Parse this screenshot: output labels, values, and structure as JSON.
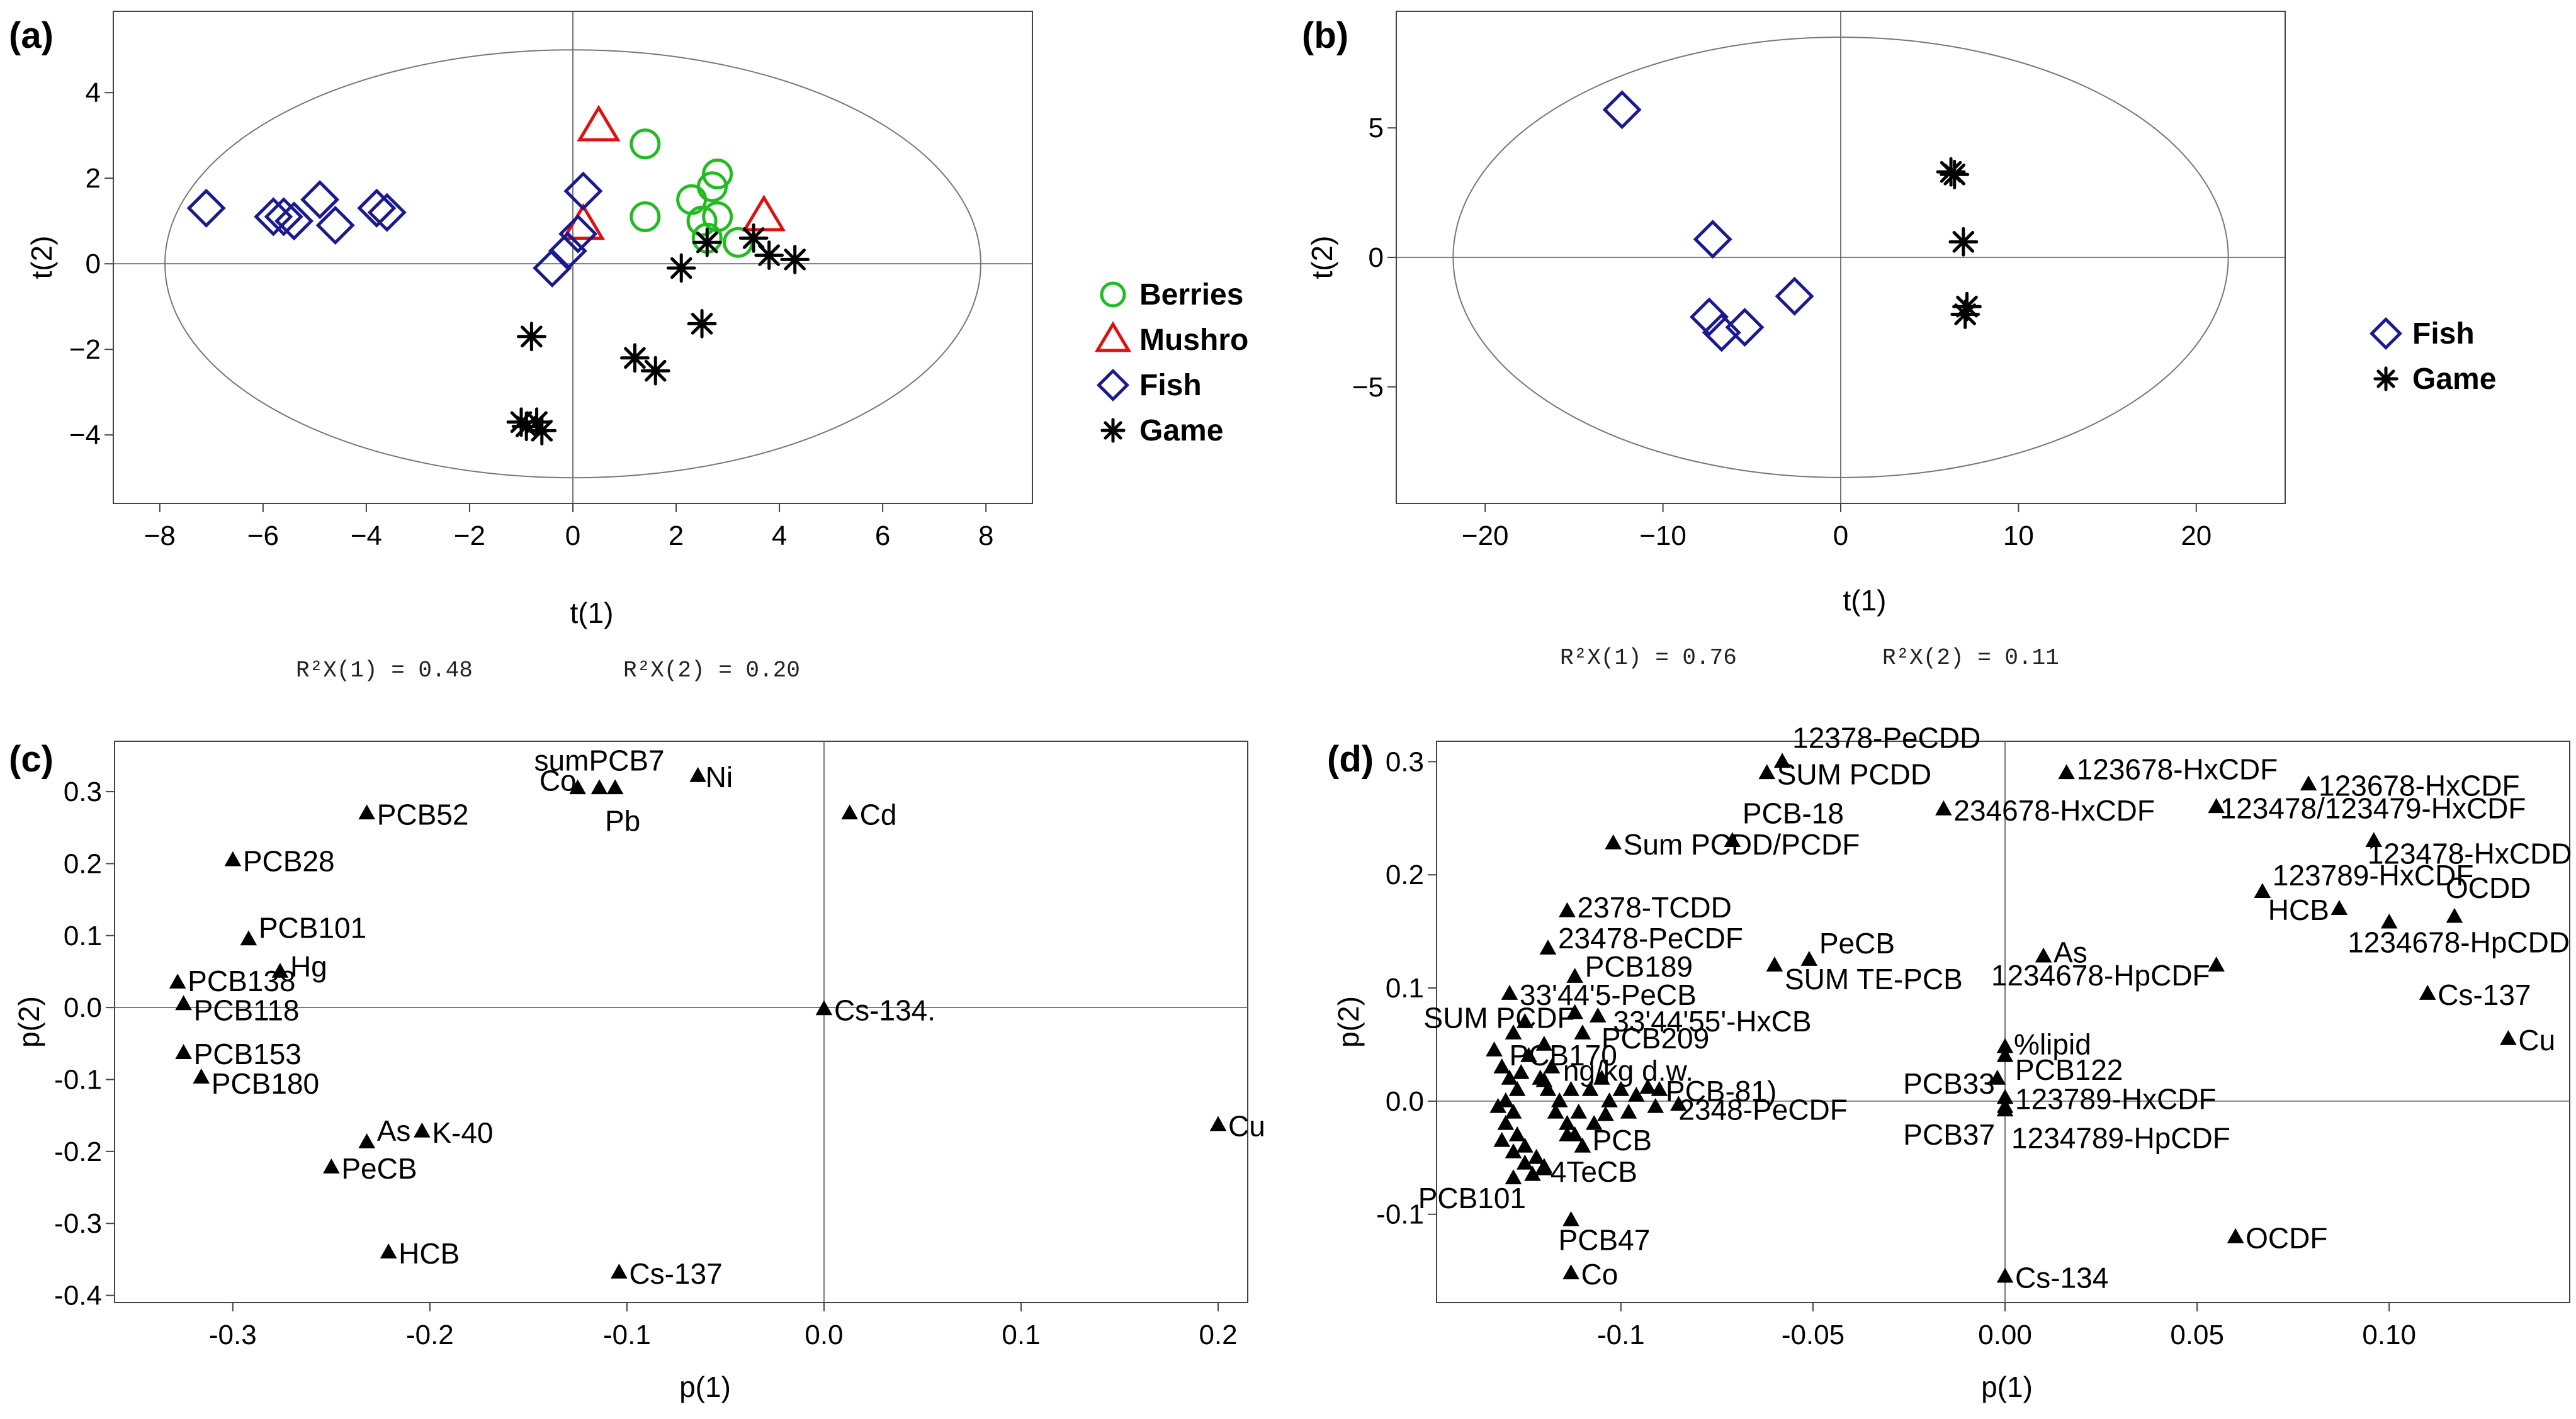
{
  "chart_data": [
    {
      "id": "a",
      "type": "scatter",
      "panel_label": "(a)",
      "xlabel": "t(1)",
      "ylabel": "t(2)",
      "xlim": [
        -8.9,
        8.9
      ],
      "ylim": [
        -5.6,
        5.9
      ],
      "xticks": [
        -8,
        -6,
        -4,
        -2,
        0,
        2,
        4,
        6,
        8
      ],
      "yticks": [
        -4,
        -2,
        0,
        2,
        4
      ],
      "ellipse": {
        "rx": 7.9,
        "ry": 5.0
      },
      "variance_text": [
        "R²X(1) = 0.48",
        "R²X(2) = 0.20"
      ],
      "legend": [
        {
          "name": "Berries",
          "marker": "circle",
          "color": "#22bb22"
        },
        {
          "name": "Mushro",
          "marker": "triangle",
          "color": "#dd1111"
        },
        {
          "name": "Fish",
          "marker": "diamond",
          "color": "#1a1a8c"
        },
        {
          "name": "Game",
          "marker": "star",
          "color": "#000000"
        }
      ],
      "series": [
        {
          "name": "Berries",
          "marker": "circle",
          "color": "#22bb22",
          "points": [
            [
              1.4,
              2.8
            ],
            [
              1.4,
              1.1
            ],
            [
              2.3,
              1.5
            ],
            [
              2.5,
              1.0
            ],
            [
              2.7,
              1.8
            ],
            [
              2.8,
              2.1
            ],
            [
              2.8,
              1.1
            ],
            [
              2.6,
              0.6
            ],
            [
              3.2,
              0.5
            ]
          ]
        },
        {
          "name": "Mushro",
          "marker": "triangle",
          "color": "#dd1111",
          "points": [
            [
              0.5,
              3.2
            ],
            [
              0.2,
              0.9
            ],
            [
              3.7,
              1.1
            ]
          ]
        },
        {
          "name": "Fish",
          "marker": "diamond",
          "color": "#1a1a8c",
          "points": [
            [
              -7.1,
              1.3
            ],
            [
              -5.8,
              1.1
            ],
            [
              -5.6,
              1.1
            ],
            [
              -5.4,
              1.0
            ],
            [
              -4.9,
              1.5
            ],
            [
              -4.6,
              0.9
            ],
            [
              -3.8,
              1.3
            ],
            [
              -3.6,
              1.2
            ],
            [
              0.2,
              1.7
            ],
            [
              0.1,
              0.7
            ],
            [
              -0.1,
              0.3
            ],
            [
              -0.4,
              -0.1
            ]
          ]
        },
        {
          "name": "Game",
          "marker": "star",
          "color": "#000000",
          "points": [
            [
              -0.8,
              -1.7
            ],
            [
              -1.0,
              -3.7
            ],
            [
              -0.9,
              -3.8
            ],
            [
              -0.7,
              -3.7
            ],
            [
              -0.6,
              -3.9
            ],
            [
              1.2,
              -2.2
            ],
            [
              1.6,
              -2.5
            ],
            [
              2.1,
              -0.1
            ],
            [
              2.6,
              0.5
            ],
            [
              2.5,
              -1.4
            ],
            [
              3.5,
              0.6
            ],
            [
              3.8,
              0.2
            ],
            [
              4.3,
              0.1
            ]
          ]
        }
      ]
    },
    {
      "id": "b",
      "type": "scatter",
      "panel_label": "(b)",
      "xlabel": "t(1)",
      "ylabel": "t(2)",
      "xlim": [
        -25,
        25
      ],
      "ylim": [
        -9.5,
        9.5
      ],
      "xticks": [
        -20,
        -10,
        0,
        10,
        20
      ],
      "yticks": [
        -5,
        0,
        5
      ],
      "ellipse": {
        "rx": 21.8,
        "ry": 8.5
      },
      "variance_text": [
        "R²X(1) = 0.76",
        "R²X(2) = 0.11"
      ],
      "legend": [
        {
          "name": "Fish",
          "marker": "diamond",
          "color": "#1a1a8c"
        },
        {
          "name": "Game",
          "marker": "star",
          "color": "#000000"
        }
      ],
      "series": [
        {
          "name": "Fish",
          "marker": "diamond",
          "color": "#1a1a8c",
          "points": [
            [
              -12.3,
              5.7
            ],
            [
              -7.2,
              0.7
            ],
            [
              -7.4,
              -2.3
            ],
            [
              -6.7,
              -2.9
            ],
            [
              -5.4,
              -2.7
            ],
            [
              -2.6,
              -1.5
            ]
          ]
        },
        {
          "name": "Game",
          "marker": "star",
          "color": "#000000",
          "points": [
            [
              6.2,
              3.3
            ],
            [
              6.4,
              3.2
            ],
            [
              6.9,
              0.6
            ],
            [
              7.1,
              -1.9
            ],
            [
              7.0,
              -2.2
            ]
          ]
        }
      ]
    },
    {
      "id": "c",
      "type": "scatter",
      "panel_label": "(c)",
      "xlabel": "p(1)",
      "ylabel": "p(2)",
      "xlim": [
        -0.36,
        0.215
      ],
      "ylim": [
        -0.41,
        0.37
      ],
      "xticks": [
        -0.3,
        -0.2,
        -0.1,
        0.0,
        0.1,
        0.2
      ],
      "ytick_values": [
        -0.4,
        -0.3,
        -0.2,
        -0.1,
        0.0,
        0.1,
        0.2,
        0.3
      ],
      "ytick_labels": [
        "-0.4",
        "-0.3",
        "-0.2",
        "-0.1",
        "0.0",
        "0.1",
        "0.2",
        "0.3"
      ],
      "xtick_labels": [
        "-0.3",
        "-0.2",
        "-0.1",
        "0.0",
        "0.1",
        "0.2"
      ],
      "points": [
        {
          "label": "Co",
          "x": -0.125,
          "y": 0.305,
          "anchor": "end",
          "dx": -2,
          "dy": 4
        },
        {
          "label": "sumPCB7",
          "x": -0.114,
          "y": 0.305,
          "anchor": "middle",
          "dx": 0,
          "dy": -28
        },
        {
          "label": "Pb",
          "x": -0.106,
          "y": 0.305,
          "anchor": "middle",
          "dx": 12,
          "dy": 68
        },
        {
          "label": "Ni",
          "x": -0.064,
          "y": 0.322,
          "anchor": "start",
          "dx": 12,
          "dy": 18
        },
        {
          "label": "Cd",
          "x": 0.013,
          "y": 0.27,
          "anchor": "start",
          "dx": 16,
          "dy": 18
        },
        {
          "label": "PCB52",
          "x": -0.232,
          "y": 0.27,
          "anchor": "start",
          "dx": 16,
          "dy": 18
        },
        {
          "label": "PCB28",
          "x": -0.3,
          "y": 0.205,
          "anchor": "start",
          "dx": 16,
          "dy": 18
        },
        {
          "label": "PCB101",
          "x": -0.292,
          "y": 0.095,
          "anchor": "start",
          "dx": 16,
          "dy": -2
        },
        {
          "label": "Hg",
          "x": -0.276,
          "y": 0.05,
          "anchor": "start",
          "dx": 16,
          "dy": 8
        },
        {
          "label": "PCB138",
          "x": -0.328,
          "y": 0.035,
          "anchor": "start",
          "dx": 16,
          "dy": 14
        },
        {
          "label": "PCB118",
          "x": -0.325,
          "y": 0.005,
          "anchor": "start",
          "dx": 16,
          "dy": 26
        },
        {
          "label": "Cs-134.",
          "x": 0.0,
          "y": -0.002,
          "anchor": "start",
          "dx": 16,
          "dy": 18
        },
        {
          "label": "PCB153",
          "x": -0.325,
          "y": -0.063,
          "anchor": "start",
          "dx": 16,
          "dy": 18
        },
        {
          "label": "PCB180",
          "x": -0.316,
          "y": -0.097,
          "anchor": "start",
          "dx": 16,
          "dy": 26
        },
        {
          "label": "As",
          "x": -0.232,
          "y": -0.187,
          "anchor": "start",
          "dx": 16,
          "dy": -2
        },
        {
          "label": "K-40",
          "x": -0.204,
          "y": -0.172,
          "anchor": "start",
          "dx": 16,
          "dy": 18
        },
        {
          "label": "PeCB",
          "x": -0.25,
          "y": -0.222,
          "anchor": "start",
          "dx": 16,
          "dy": 18
        },
        {
          "label": "Cu",
          "x": 0.2,
          "y": -0.163,
          "anchor": "start",
          "dx": 16,
          "dy": 18
        },
        {
          "label": "HCB",
          "x": -0.221,
          "y": -0.34,
          "anchor": "start",
          "dx": 16,
          "dy": 18
        },
        {
          "label": "Cs-137",
          "x": -0.104,
          "y": -0.368,
          "anchor": "start",
          "dx": 16,
          "dy": 18
        }
      ]
    },
    {
      "id": "d",
      "type": "scatter",
      "panel_label": "(d)",
      "xlabel": "p(1)",
      "ylabel": "p(2)",
      "xlim": [
        -0.148,
        0.147
      ],
      "ylim": [
        -0.178,
        0.318
      ],
      "xticks": [
        -0.1,
        -0.05,
        0.0,
        0.05,
        0.1
      ],
      "xtick_labels": [
        "-0.1",
        "-0.05",
        "0.00",
        "0.05",
        "0.10"
      ],
      "ytick_values": [
        -0.1,
        0.0,
        0.1,
        0.2,
        0.3
      ],
      "ytick_labels": [
        "-0.1",
        "0.0",
        "0.1",
        "0.2",
        "0.3"
      ],
      "points": [
        {
          "label": "12378-PeCDD",
          "x": -0.058,
          "y": 0.3,
          "anchor": "start",
          "dx": 16,
          "dy": -22
        },
        {
          "label": "SUM PCDD",
          "x": -0.062,
          "y": 0.29,
          "anchor": "start",
          "dx": 16,
          "dy": 18
        },
        {
          "label": "123678-HxCDF",
          "x": 0.016,
          "y": 0.29,
          "anchor": "start",
          "dx": 16,
          "dy": 10
        },
        {
          "label": "123678-HxCDF",
          "x": 0.079,
          "y": 0.28,
          "anchor": "start",
          "dx": 16,
          "dy": 18
        },
        {
          "label": "123478/123479-HxCDF",
          "x": 0.055,
          "y": 0.26,
          "anchor": "start",
          "dx": 6,
          "dy": 18
        },
        {
          "label": "234678-HxCDF",
          "x": -0.016,
          "y": 0.258,
          "anchor": "start",
          "dx": 16,
          "dy": 18
        },
        {
          "label": "PCB-18",
          "x": -0.071,
          "y": 0.23,
          "anchor": "start",
          "dx": 16,
          "dy": -28
        },
        {
          "label": "Sum PCDD/PCDF",
          "x": -0.102,
          "y": 0.228,
          "anchor": "start",
          "dx": 16,
          "dy": 18
        },
        {
          "label": "123478-HxCDD",
          "x": 0.096,
          "y": 0.23,
          "anchor": "start",
          "dx": -10,
          "dy": 36
        },
        {
          "label": "123789-HxCDF",
          "x": 0.067,
          "y": 0.185,
          "anchor": "start",
          "dx": 16,
          "dy": -10
        },
        {
          "label": "HCB",
          "x": 0.087,
          "y": 0.17,
          "anchor": "end",
          "dx": -16,
          "dy": 18
        },
        {
          "label": "OCDD",
          "x": 0.117,
          "y": 0.163,
          "anchor": "start",
          "dx": -14,
          "dy": -30
        },
        {
          "label": "1234678-HpCDD",
          "x": 0.1,
          "y": 0.158,
          "anchor": "start",
          "dx": -66,
          "dy": 48
        },
        {
          "label": "2378-TCDD",
          "x": -0.114,
          "y": 0.168,
          "anchor": "start",
          "dx": 16,
          "dy": 10
        },
        {
          "label": "23478-PeCDF",
          "x": -0.119,
          "y": 0.135,
          "anchor": "start",
          "dx": 16,
          "dy": 0
        },
        {
          "label": "PCB189",
          "x": -0.112,
          "y": 0.11,
          "anchor": "start",
          "dx": 16,
          "dy": 0
        },
        {
          "label": "PeCB",
          "x": -0.051,
          "y": 0.125,
          "anchor": "start",
          "dx": 16,
          "dy": -10
        },
        {
          "label": "SUM TE-PCB",
          "x": -0.06,
          "y": 0.12,
          "anchor": "start",
          "dx": 16,
          "dy": 38
        },
        {
          "label": "As",
          "x": 0.01,
          "y": 0.128,
          "anchor": "start",
          "dx": 16,
          "dy": 10
        },
        {
          "label": "1234678-HpCDF",
          "x": 0.055,
          "y": 0.12,
          "anchor": "end",
          "dx": -10,
          "dy": 32
        },
        {
          "label": "Cs-137",
          "x": 0.11,
          "y": 0.095,
          "anchor": "start",
          "dx": 16,
          "dy": 18
        },
        {
          "label": "33'44'5-PeCB",
          "x": -0.129,
          "y": 0.095,
          "anchor": "start",
          "dx": 16,
          "dy": 18
        },
        {
          "label": "SUM PCDF",
          "x": -0.112,
          "y": 0.078,
          "anchor": "end",
          "dx": 0,
          "dy": 24
        },
        {
          "label": "33'44'55'-HxCB",
          "x": -0.106,
          "y": 0.075,
          "anchor": "start",
          "dx": 24,
          "dy": 24
        },
        {
          "label": "PCB209",
          "x": -0.11,
          "y": 0.06,
          "anchor": "start",
          "dx": 30,
          "dy": 24
        },
        {
          "label": "PCB170",
          "x": -0.133,
          "y": 0.045,
          "anchor": "start",
          "dx": 24,
          "dy": 24
        },
        {
          "label": "%lipid",
          "x": 0.0,
          "y": 0.048,
          "anchor": "start",
          "dx": 14,
          "dy": 12
        },
        {
          "label": "PCB33",
          "x": -0.002,
          "y": 0.02,
          "anchor": "end",
          "dx": -4,
          "dy": 24
        },
        {
          "label": "PCB122",
          "x": 0.0,
          "y": 0.04,
          "anchor": "start",
          "dx": 16,
          "dy": 38
        },
        {
          "label": "Cu",
          "x": 0.131,
          "y": 0.055,
          "anchor": "start",
          "dx": 16,
          "dy": 18
        },
        {
          "label": "123789-HxCDF",
          "x": 0.0,
          "y": 0.003,
          "anchor": "start",
          "dx": 16,
          "dy": 18
        },
        {
          "label": "PCB37",
          "x": 0.0,
          "y": -0.005,
          "anchor": "end",
          "dx": -16,
          "dy": 60
        },
        {
          "label": "1234789-HpCDF",
          "x": 0.0,
          "y": -0.008,
          "anchor": "start",
          "dx": 10,
          "dy": 60
        },
        {
          "label": "ng/kg d.w.",
          "x": -0.12,
          "y": 0.018,
          "anchor": "start",
          "dx": 30,
          "dy": 0
        },
        {
          "label": "PCB-81)",
          "x": -0.09,
          "y": 0.01,
          "anchor": "start",
          "dx": 10,
          "dy": 18
        },
        {
          "label": "2348-PeCDF",
          "x": -0.085,
          "y": -0.003,
          "anchor": "start",
          "dx": 0,
          "dy": 24
        },
        {
          "label": "PCB",
          "x": -0.114,
          "y": -0.03,
          "anchor": "start",
          "dx": 40,
          "dy": 24
        },
        {
          "label": "4TeCB",
          "x": -0.12,
          "y": -0.058,
          "anchor": "start",
          "dx": 10,
          "dy": 24
        },
        {
          "label": "PCB101",
          "x": -0.128,
          "y": -0.068,
          "anchor": "end",
          "dx": 20,
          "dy": 48
        },
        {
          "label": "PCB47",
          "x": -0.113,
          "y": -0.105,
          "anchor": "start",
          "dx": -20,
          "dy": 48
        },
        {
          "label": "Co",
          "x": -0.113,
          "y": -0.152,
          "anchor": "start",
          "dx": 16,
          "dy": 18
        },
        {
          "label": "OCDF",
          "x": 0.06,
          "y": -0.12,
          "anchor": "start",
          "dx": 16,
          "dy": 18
        },
        {
          "label": "Cs-134",
          "x": 0.0,
          "y": -0.155,
          "anchor": "start",
          "dx": 16,
          "dy": 18
        }
      ],
      "cluster_points": [
        [
          -0.131,
          0.03
        ],
        [
          -0.129,
          0.02
        ],
        [
          -0.127,
          0.01
        ],
        [
          -0.13,
          0.0
        ],
        [
          -0.128,
          -0.01
        ],
        [
          -0.13,
          -0.02
        ],
        [
          -0.127,
          -0.03
        ],
        [
          -0.125,
          -0.04
        ],
        [
          -0.122,
          -0.05
        ],
        [
          -0.12,
          -0.06
        ],
        [
          -0.124,
          0.04
        ],
        [
          -0.121,
          0.02
        ],
        [
          -0.118,
          0.03
        ],
        [
          -0.119,
          0.01
        ],
        [
          -0.116,
          0.0
        ],
        [
          -0.117,
          -0.01
        ],
        [
          -0.114,
          -0.02
        ],
        [
          -0.112,
          -0.03
        ],
        [
          -0.11,
          -0.04
        ],
        [
          -0.108,
          0.01
        ],
        [
          -0.105,
          0.02
        ],
        [
          -0.103,
          0.0
        ],
        [
          -0.1,
          0.01
        ],
        [
          -0.098,
          -0.01
        ],
        [
          -0.096,
          0.005
        ],
        [
          -0.093,
          0.012
        ],
        [
          -0.091,
          -0.005
        ],
        [
          -0.125,
          -0.055
        ],
        [
          -0.128,
          -0.045
        ],
        [
          -0.123,
          -0.065
        ],
        [
          -0.12,
          0.05
        ],
        [
          -0.125,
          0.07
        ],
        [
          -0.128,
          0.06
        ],
        [
          -0.132,
          -0.005
        ],
        [
          -0.131,
          -0.035
        ],
        [
          -0.126,
          0.025
        ],
        [
          -0.113,
          0.01
        ],
        [
          -0.111,
          -0.01
        ],
        [
          -0.107,
          -0.02
        ],
        [
          -0.104,
          -0.012
        ]
      ]
    }
  ]
}
